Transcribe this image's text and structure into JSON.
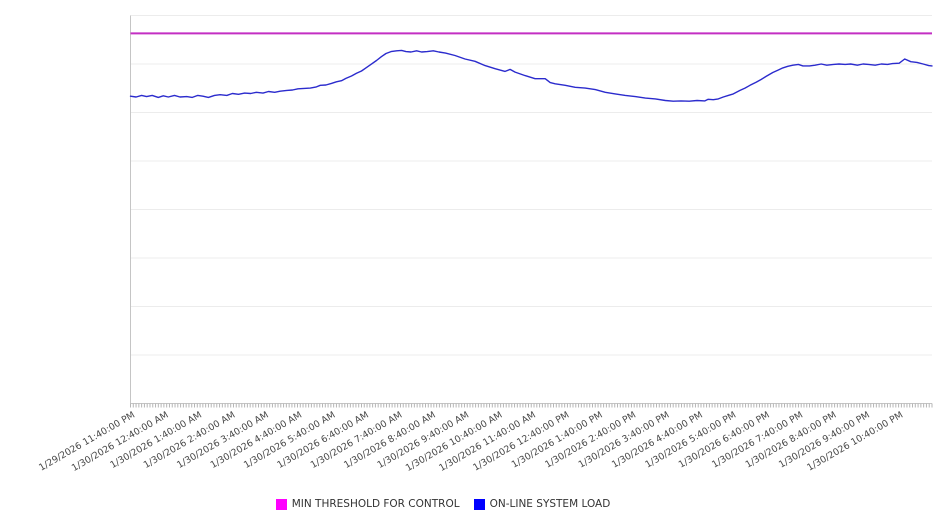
{
  "page": {
    "background": "#ffffff"
  },
  "chart_data": {
    "type": "line",
    "title": "",
    "legend_position": "bottom",
    "grid": true,
    "x_axis": {
      "span_minutes": 1440,
      "minor_ticks": 289,
      "label_every_minutes": 60,
      "label_rotation_deg": -30,
      "tick_labels": [
        "1/29/2026 11:40:00 PM",
        "1/30/2026 12:40:00 AM",
        "1/30/2026 1:40:00 AM",
        "1/30/2026 2:40:00 AM",
        "1/30/2026 3:40:00 AM",
        "1/30/2026 4:40:00 AM",
        "1/30/2026 5:40:00 AM",
        "1/30/2026 6:40:00 AM",
        "1/30/2026 7:40:00 AM",
        "1/30/2026 8:40:00 AM",
        "1/30/2026 9:40:00 AM",
        "1/30/2026 10:40:00 AM",
        "1/30/2026 11:40:00 AM",
        "1/30/2026 12:40:00 PM",
        "1/30/2026 1:40:00 PM",
        "1/30/2026 2:40:00 PM",
        "1/30/2026 3:40:00 PM",
        "1/30/2026 4:40:00 PM",
        "1/30/2026 5:40:00 PM",
        "1/30/2026 6:40:00 PM",
        "1/30/2026 7:40:00 PM",
        "1/30/2026 8:40:00 PM",
        "1/30/2026 9:40:00 PM",
        "1/30/2026 10:40:00 PM"
      ]
    },
    "y_axis": {
      "tick_labels_visible": false,
      "unit": "percent-of-plot-height (axis unlabeled, estimated from gridlines)",
      "range": [
        0,
        100
      ],
      "gridlines": 9
    },
    "series": [
      {
        "name": "MIN THRESHOLD FOR CONTROL",
        "type": "constant-threshold",
        "value": 95.4,
        "line_color": "#c32fc3",
        "legend_color": "#ff00ff"
      },
      {
        "name": "ON-LINE SYSTEM LOAD",
        "type": "line",
        "line_color": "#2b2bcd",
        "legend_color": "#0000ff",
        "points_minutes_value": [
          [
            0,
            79.2
          ],
          [
            10,
            79.0
          ],
          [
            20,
            79.4
          ],
          [
            29,
            79.1
          ],
          [
            39,
            79.4
          ],
          [
            50,
            78.9
          ],
          [
            59,
            79.3
          ],
          [
            68,
            79.0
          ],
          [
            79,
            79.4
          ],
          [
            89,
            79.0
          ],
          [
            101,
            79.1
          ],
          [
            111,
            78.9
          ],
          [
            121,
            79.4
          ],
          [
            130,
            79.2
          ],
          [
            140,
            78.9
          ],
          [
            151,
            79.4
          ],
          [
            161,
            79.6
          ],
          [
            173,
            79.4
          ],
          [
            183,
            79.9
          ],
          [
            194,
            79.7
          ],
          [
            205,
            80.0
          ],
          [
            216,
            79.9
          ],
          [
            226,
            80.2
          ],
          [
            238,
            80.0
          ],
          [
            248,
            80.4
          ],
          [
            259,
            80.2
          ],
          [
            269,
            80.5
          ],
          [
            281,
            80.7
          ],
          [
            291,
            80.8
          ],
          [
            301,
            81.1
          ],
          [
            312,
            81.2
          ],
          [
            323,
            81.3
          ],
          [
            334,
            81.6
          ],
          [
            341,
            82.0
          ],
          [
            351,
            82.1
          ],
          [
            361,
            82.5
          ],
          [
            370,
            82.9
          ],
          [
            379,
            83.2
          ],
          [
            387,
            83.8
          ],
          [
            397,
            84.4
          ],
          [
            406,
            85.1
          ],
          [
            415,
            85.7
          ],
          [
            423,
            86.5
          ],
          [
            432,
            87.4
          ],
          [
            442,
            88.4
          ],
          [
            451,
            89.4
          ],
          [
            459,
            90.2
          ],
          [
            468,
            90.7
          ],
          [
            478,
            90.9
          ],
          [
            487,
            91.0
          ],
          [
            495,
            90.7
          ],
          [
            504,
            90.6
          ],
          [
            514,
            90.9
          ],
          [
            523,
            90.6
          ],
          [
            533,
            90.7
          ],
          [
            544,
            90.9
          ],
          [
            554,
            90.6
          ],
          [
            566,
            90.3
          ],
          [
            583,
            89.7
          ],
          [
            601,
            88.8
          ],
          [
            619,
            88.2
          ],
          [
            637,
            87.1
          ],
          [
            655,
            86.3
          ],
          [
            673,
            85.6
          ],
          [
            682,
            86.1
          ],
          [
            691,
            85.4
          ],
          [
            709,
            84.5
          ],
          [
            727,
            83.7
          ],
          [
            745,
            83.7
          ],
          [
            754,
            82.7
          ],
          [
            763,
            82.4
          ],
          [
            781,
            82.0
          ],
          [
            799,
            81.5
          ],
          [
            817,
            81.3
          ],
          [
            835,
            80.9
          ],
          [
            853,
            80.2
          ],
          [
            871,
            79.8
          ],
          [
            889,
            79.4
          ],
          [
            907,
            79.1
          ],
          [
            925,
            78.7
          ],
          [
            943,
            78.5
          ],
          [
            961,
            78.1
          ],
          [
            975,
            77.9
          ],
          [
            989,
            78.0
          ],
          [
            1004,
            77.9
          ],
          [
            1018,
            78.1
          ],
          [
            1032,
            78.0
          ],
          [
            1038,
            78.4
          ],
          [
            1047,
            78.3
          ],
          [
            1056,
            78.5
          ],
          [
            1065,
            79.0
          ],
          [
            1074,
            79.4
          ],
          [
            1083,
            79.8
          ],
          [
            1095,
            80.7
          ],
          [
            1104,
            81.3
          ],
          [
            1113,
            82.0
          ],
          [
            1124,
            82.8
          ],
          [
            1133,
            83.5
          ],
          [
            1142,
            84.3
          ],
          [
            1154,
            85.3
          ],
          [
            1163,
            85.9
          ],
          [
            1172,
            86.5
          ],
          [
            1181,
            86.9
          ],
          [
            1190,
            87.2
          ],
          [
            1200,
            87.4
          ],
          [
            1208,
            87.0
          ],
          [
            1220,
            87.0
          ],
          [
            1230,
            87.2
          ],
          [
            1241,
            87.5
          ],
          [
            1251,
            87.2
          ],
          [
            1263,
            87.4
          ],
          [
            1273,
            87.5
          ],
          [
            1284,
            87.4
          ],
          [
            1294,
            87.5
          ],
          [
            1306,
            87.2
          ],
          [
            1316,
            87.5
          ],
          [
            1326,
            87.4
          ],
          [
            1338,
            87.2
          ],
          [
            1349,
            87.5
          ],
          [
            1360,
            87.4
          ],
          [
            1369,
            87.6
          ],
          [
            1381,
            87.7
          ],
          [
            1391,
            88.8
          ],
          [
            1402,
            88.1
          ],
          [
            1413,
            87.9
          ],
          [
            1424,
            87.5
          ],
          [
            1434,
            87.1
          ],
          [
            1440,
            87.0
          ]
        ]
      }
    ]
  }
}
